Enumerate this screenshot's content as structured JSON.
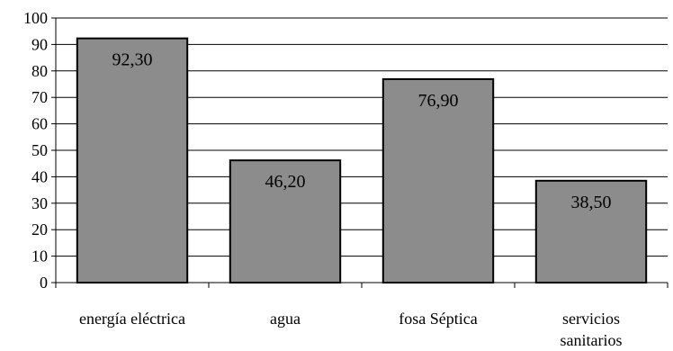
{
  "chart_data": {
    "type": "bar",
    "categories": [
      [
        "energía eléctrica"
      ],
      [
        "agua"
      ],
      [
        "fosa Séptica"
      ],
      [
        "servicios",
        "sanitarios"
      ]
    ],
    "values": [
      92.3,
      46.2,
      76.9,
      38.5
    ],
    "data_labels": [
      "92,30",
      "46,20",
      "76,90",
      "38,50"
    ],
    "ylim": [
      0,
      100
    ],
    "y_ticks": [
      0,
      10,
      20,
      30,
      40,
      50,
      60,
      70,
      80,
      90,
      100
    ],
    "grid": true,
    "legend": "none",
    "colors": {
      "bar_fill": "#8c8c8c",
      "bar_stroke": "#000000",
      "grid": "#000000",
      "axis": "#000000"
    }
  }
}
